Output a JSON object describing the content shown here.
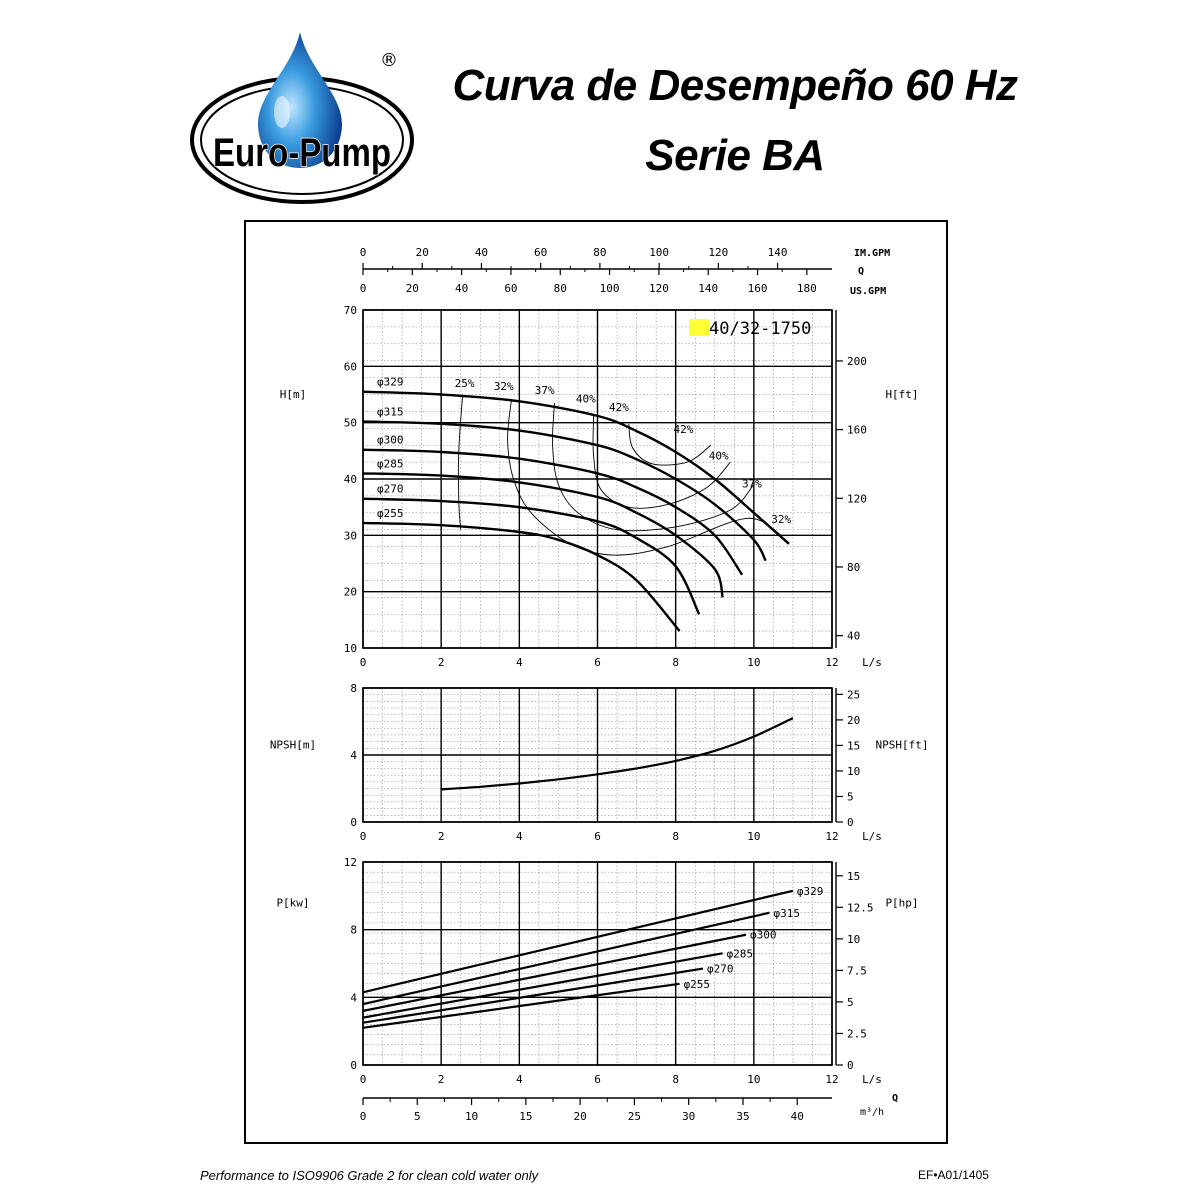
{
  "header": {
    "logo_text": "Euro-Pump",
    "registered_mark": "®",
    "title_line1": "Curva de Desempeño 60 Hz",
    "title_line2": "Serie BA"
  },
  "footer": {
    "left": "Performance to ISO9906 Grade 2 for clean cold water only",
    "right": "EF•A01/1405"
  },
  "colors": {
    "model_highlight": "#ffff33",
    "ink": "#000000",
    "grid": "#666666",
    "logo_blue": "#1e78c8"
  },
  "chart_data": [
    {
      "type": "line",
      "name": "head",
      "model_label": "40/32-1750",
      "ylabel_left": "H[m]",
      "ylabel_right": "H[ft]",
      "xlabel": "L/s",
      "xlim": [
        0,
        12
      ],
      "ylim": [
        10,
        70
      ],
      "x_ticks": [
        0,
        2,
        4,
        6,
        8,
        10,
        12
      ],
      "y_ticks": [
        10,
        20,
        30,
        40,
        50,
        60,
        70
      ],
      "y_right_ticks": [
        40,
        80,
        120,
        160,
        200
      ],
      "top_axes": [
        {
          "label": "IM.GPM",
          "ticks": [
            0,
            20,
            40,
            60,
            80,
            100,
            120,
            140
          ],
          "per_ls": 13.198
        },
        {
          "label": "Q",
          "ticks": [],
          "per_ls": 0
        },
        {
          "label": "US.GPM",
          "ticks": [
            0,
            20,
            40,
            60,
            80,
            100,
            120,
            140,
            160,
            180
          ],
          "per_ls": 15.85
        }
      ],
      "series": [
        {
          "name": "φ329",
          "x": [
            0,
            2,
            4,
            6,
            7,
            8,
            9,
            10,
            10.9
          ],
          "y": [
            55.5,
            55,
            53.8,
            51.2,
            48.5,
            44.8,
            40,
            34,
            28.5
          ]
        },
        {
          "name": "φ315",
          "x": [
            0,
            2,
            4,
            6,
            7,
            8,
            9,
            10,
            10.3
          ],
          "y": [
            50.2,
            49.8,
            48.6,
            46,
            43.5,
            40,
            35.5,
            29.2,
            25.5
          ]
        },
        {
          "name": "φ300",
          "x": [
            0,
            2,
            4,
            6,
            7,
            8,
            9,
            9.7
          ],
          "y": [
            45.2,
            44.8,
            43.6,
            41,
            38.5,
            35,
            30,
            23
          ]
        },
        {
          "name": "φ285",
          "x": [
            0,
            2,
            4,
            6,
            7,
            8,
            9,
            9.2
          ],
          "y": [
            41,
            40.6,
            39.4,
            36.8,
            34,
            30,
            24,
            19
          ]
        },
        {
          "name": "φ270",
          "x": [
            0,
            2,
            4,
            6,
            7,
            8,
            8.6
          ],
          "y": [
            36.5,
            36.1,
            35,
            32.5,
            29.5,
            24.5,
            16
          ]
        },
        {
          "name": "φ255",
          "x": [
            0,
            2,
            4,
            5,
            6,
            7,
            8.1
          ],
          "y": [
            32.2,
            31.8,
            30.6,
            29.2,
            26.5,
            22,
            13
          ]
        }
      ],
      "efficiency_curves": [
        {
          "label": "25%",
          "x": [
            2.55,
            2.45,
            2.45,
            2.5
          ],
          "y": [
            55,
            45,
            36,
            31
          ]
        },
        {
          "label": "32%",
          "x": [
            3.8,
            3.7,
            3.85,
            4.3,
            5.3,
            6.4,
            7.8,
            9.8,
            10.7
          ],
          "y": [
            54.2,
            47,
            40,
            34,
            28.5,
            26.5,
            28,
            33,
            30
          ]
        },
        {
          "label": "37%",
          "x": [
            4.9,
            4.85,
            5,
            5.5,
            6.5,
            8,
            9.4,
            10
          ],
          "y": [
            53.5,
            46,
            39,
            34,
            31,
            31.5,
            34.5,
            39
          ]
        },
        {
          "label": "40%",
          "x": [
            5.9,
            5.9,
            6.1,
            6.8,
            7.8,
            8.8,
            9.4
          ],
          "y": [
            51.3,
            44,
            38,
            35,
            35.5,
            38.5,
            43
          ]
        },
        {
          "label": "42%",
          "x": [
            6.8,
            6.9,
            7.4,
            8.3,
            8.9
          ],
          "y": [
            49.8,
            45.5,
            42.7,
            43,
            46
          ]
        }
      ],
      "efficiency_labels": [
        {
          "text": "25%",
          "x": 2.6,
          "y": 56.3
        },
        {
          "text": "32%",
          "x": 3.6,
          "y": 55.8
        },
        {
          "text": "37%",
          "x": 4.65,
          "y": 55.1
        },
        {
          "text": "40%",
          "x": 5.7,
          "y": 53.6
        },
        {
          "text": "42%",
          "x": 6.55,
          "y": 52.1
        },
        {
          "text": "42%",
          "x": 8.2,
          "y": 48.2
        },
        {
          "text": "40%",
          "x": 9.1,
          "y": 43.5
        },
        {
          "text": "37%",
          "x": 9.95,
          "y": 38.5
        },
        {
          "text": "32%",
          "x": 10.7,
          "y": 32.2
        }
      ]
    },
    {
      "type": "line",
      "name": "npsh",
      "ylabel_left": "NPSH[m]",
      "ylabel_right": "NPSH[ft]",
      "xlabel": "L/s",
      "xlim": [
        0,
        12
      ],
      "ylim": [
        0,
        8
      ],
      "x_ticks": [
        0,
        2,
        4,
        6,
        8,
        10,
        12
      ],
      "y_ticks": [
        0,
        4,
        8
      ],
      "y_right_ticks": [
        0,
        5,
        10,
        15,
        20,
        25
      ],
      "series": [
        {
          "name": "NPSH",
          "x": [
            2,
            3,
            4,
            5,
            6,
            7,
            8,
            9,
            10,
            11
          ],
          "y": [
            1.95,
            2.1,
            2.3,
            2.55,
            2.85,
            3.2,
            3.65,
            4.25,
            5.1,
            6.2
          ]
        }
      ]
    },
    {
      "type": "line",
      "name": "power",
      "ylabel_left": "P[kw]",
      "ylabel_right": "P[hp]",
      "xlabel": "L/s",
      "xlim": [
        0,
        12
      ],
      "ylim": [
        0,
        12
      ],
      "x_ticks": [
        0,
        2,
        4,
        6,
        8,
        10,
        12
      ],
      "y_ticks": [
        0,
        4,
        8,
        12
      ],
      "y_right_ticks": [
        0,
        2.5,
        5,
        7.5,
        10,
        12.5,
        15
      ],
      "bottom_axis": {
        "label": "m³/h",
        "q_label": "Q",
        "ticks": [
          0,
          5,
          10,
          15,
          20,
          25,
          30,
          35,
          40
        ],
        "per_ls": 3.6
      },
      "series": [
        {
          "name": "φ329",
          "x": [
            0,
            11
          ],
          "y": [
            4.3,
            10.3
          ]
        },
        {
          "name": "φ315",
          "x": [
            0,
            10.4
          ],
          "y": [
            3.6,
            9.0
          ]
        },
        {
          "name": "φ300",
          "x": [
            0,
            9.8
          ],
          "y": [
            3.2,
            7.7
          ]
        },
        {
          "name": "φ285",
          "x": [
            0,
            9.2
          ],
          "y": [
            2.8,
            6.6
          ]
        },
        {
          "name": "φ270",
          "x": [
            0,
            8.7
          ],
          "y": [
            2.5,
            5.7
          ]
        },
        {
          "name": "φ255",
          "x": [
            0,
            8.1
          ],
          "y": [
            2.2,
            4.8
          ]
        }
      ]
    }
  ]
}
